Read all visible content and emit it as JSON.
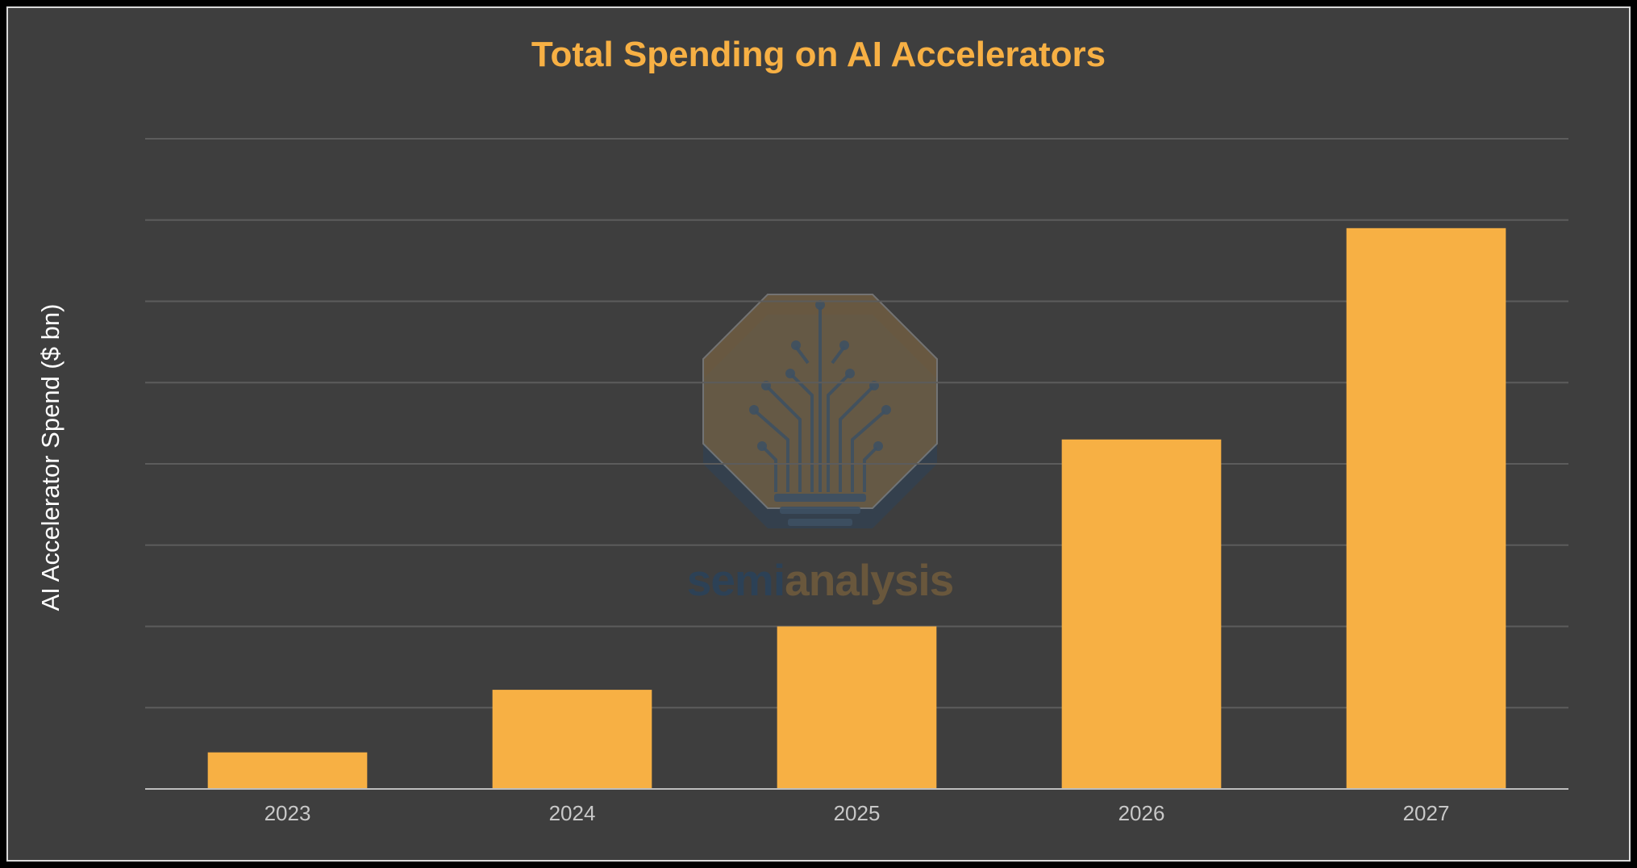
{
  "colors": {
    "bar": "#f7b044",
    "title": "#f7b044",
    "background": "#3e3e3e",
    "grid": "#5c5c5c",
    "axis": "#bdbdbd"
  },
  "watermark": {
    "brand_part1": "semi",
    "brand_part2": "analysis",
    "icon": "circuit-lightbulb-icon"
  },
  "chart_data": {
    "type": "bar",
    "title": "Total Spending on AI Accelerators",
    "xlabel": "",
    "ylabel": "AI Accelerator Spend ($ bn)",
    "categories": [
      "2023",
      "2024",
      "2025",
      "2026",
      "2027"
    ],
    "values": [
      4.5,
      12.2,
      20.0,
      43.0,
      69.0
    ],
    "ylim": [
      0,
      80
    ],
    "y_tick_labels_shown": false,
    "grid": true,
    "legend": "none"
  }
}
